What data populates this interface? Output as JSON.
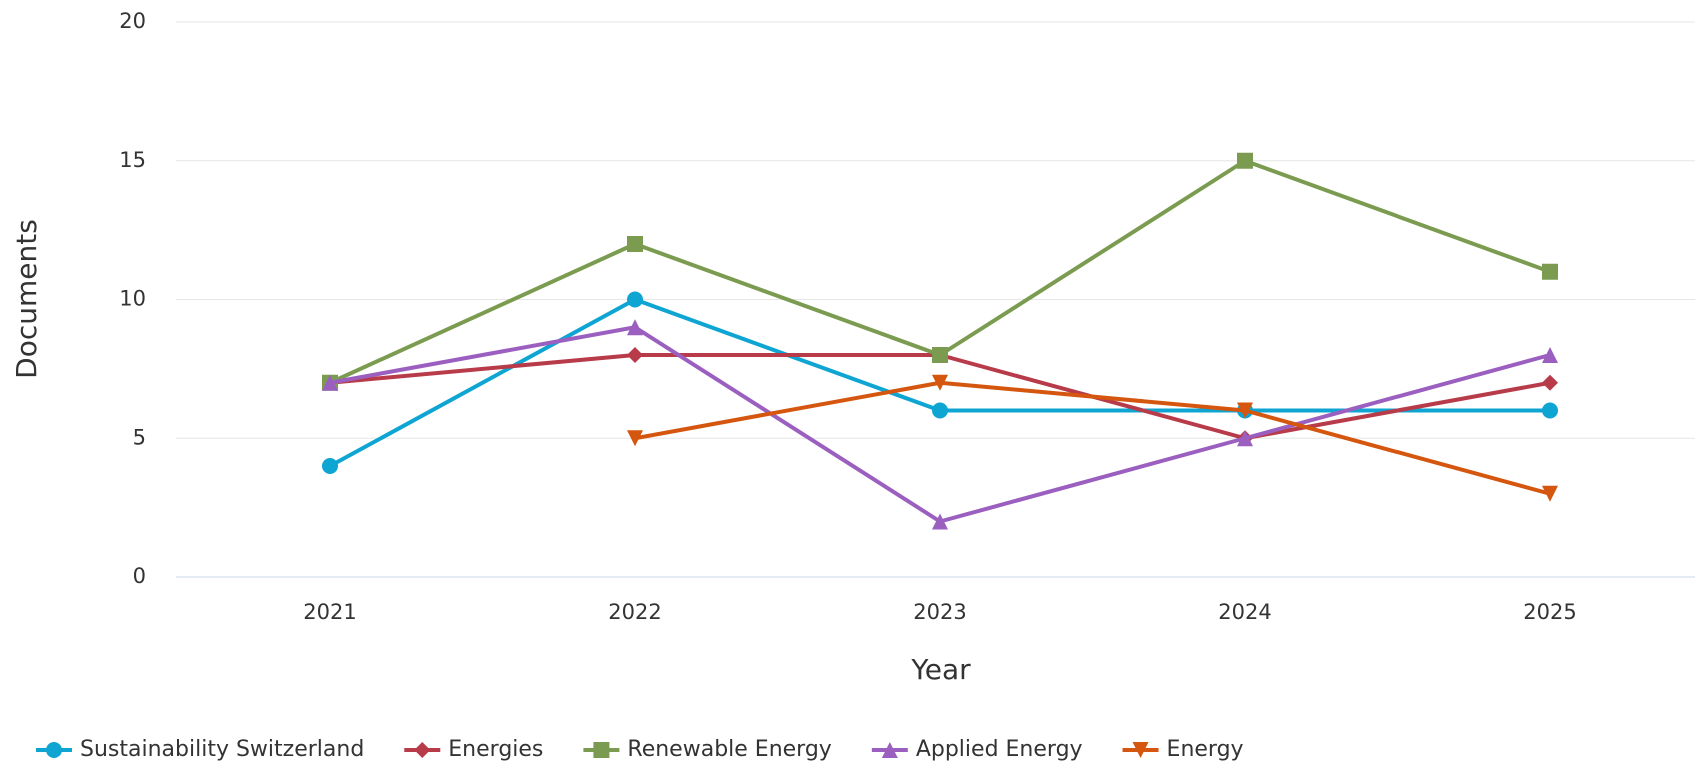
{
  "chart_data": {
    "type": "line",
    "x_label": "Year",
    "y_label": "Documents",
    "categories": [
      "2021",
      "2022",
      "2023",
      "2024",
      "2025"
    ],
    "series": [
      {
        "name": "Sustainability Switzerland",
        "color": "#0ea5d3",
        "marker": "circle",
        "values": [
          4,
          10,
          6,
          6,
          6
        ]
      },
      {
        "name": "Energies",
        "color": "#b83b4a",
        "marker": "diamond",
        "values": [
          7,
          8,
          8,
          5,
          7
        ]
      },
      {
        "name": "Renewable Energy",
        "color": "#7b9c50",
        "marker": "square",
        "values": [
          7,
          12,
          8,
          15,
          11
        ]
      },
      {
        "name": "Applied Energy",
        "color": "#9b5fc0",
        "marker": "triangle",
        "values": [
          7,
          9,
          2,
          5,
          8
        ]
      },
      {
        "name": "Energy",
        "color": "#d4560f",
        "marker": "triangle-down",
        "values": [
          null,
          5,
          7,
          6,
          3
        ]
      }
    ],
    "ylim": [
      0,
      20
    ],
    "yticks": [
      0,
      5,
      10,
      15,
      20
    ],
    "grid": true,
    "legend": "bottom"
  }
}
